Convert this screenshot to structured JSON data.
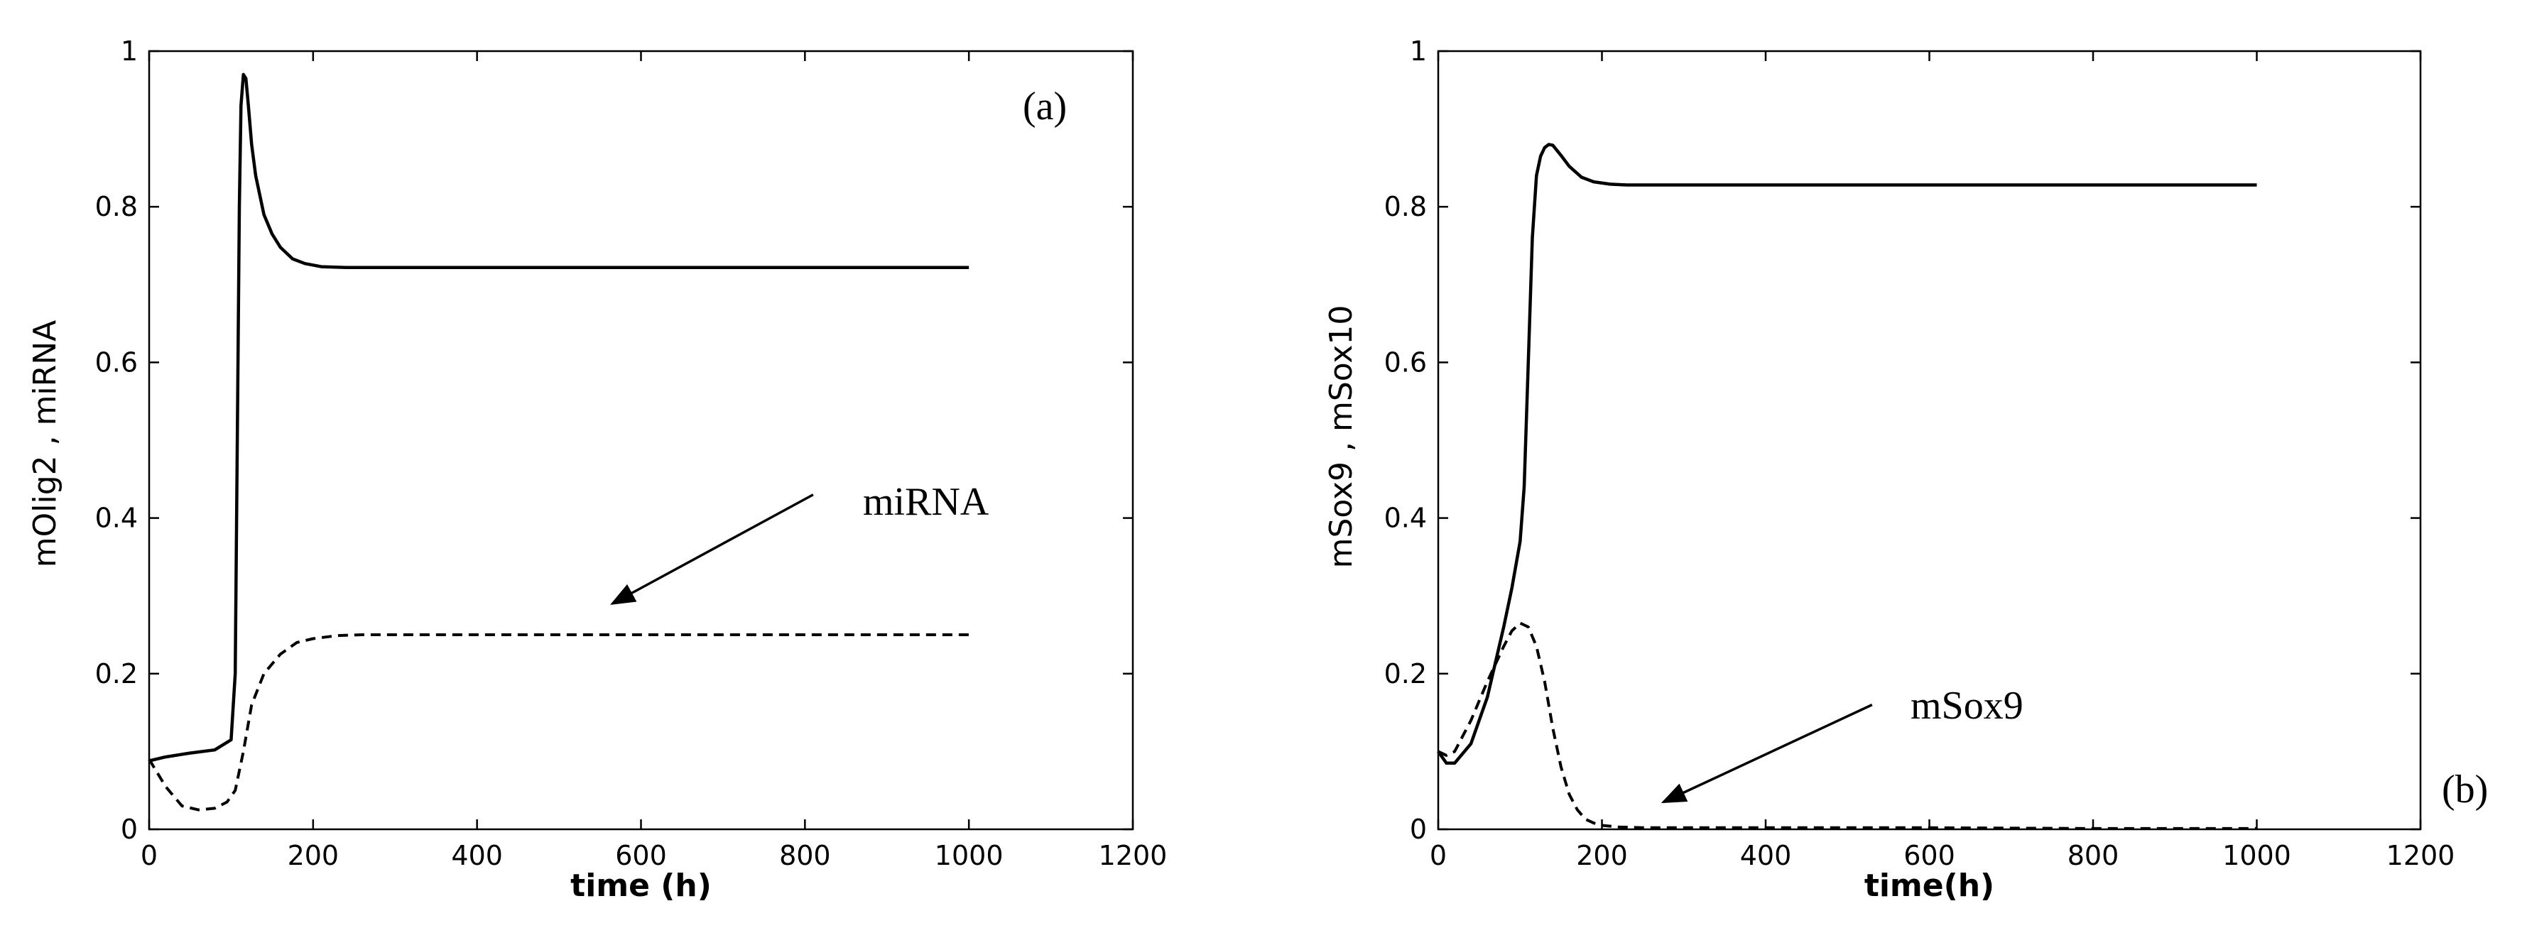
{
  "chart_data": [
    {
      "type": "line",
      "panel_label": "(a)",
      "xlabel": "time (h)",
      "ylabel": "mOlig2 , miRNA",
      "xlim": [
        0,
        1200
      ],
      "ylim": [
        0,
        1
      ],
      "xticks": [
        0,
        200,
        400,
        600,
        800,
        1000,
        1200
      ],
      "yticks": [
        0,
        0.2,
        0.4,
        0.6,
        0.8,
        1
      ],
      "xtick_labels": [
        "0",
        "200",
        "400",
        "600",
        "800",
        "1000",
        "1200"
      ],
      "ytick_labels": [
        "0",
        "0.2",
        "0.4",
        "0.6",
        "0.8",
        "1"
      ],
      "annotation": {
        "text": "miRNA",
        "arrow_from": [
          810,
          0.43
        ],
        "arrow_to": [
          565,
          0.29
        ]
      },
      "series": [
        {
          "name": "mOlig2",
          "style": "solid",
          "x": [
            0,
            20,
            50,
            80,
            100,
            105,
            108,
            110,
            112,
            115,
            118,
            121,
            125,
            130,
            140,
            150,
            160,
            175,
            190,
            210,
            240,
            300,
            500,
            800,
            1000
          ],
          "y": [
            0.088,
            0.093,
            0.098,
            0.102,
            0.115,
            0.2,
            0.55,
            0.8,
            0.93,
            0.97,
            0.965,
            0.93,
            0.88,
            0.84,
            0.79,
            0.765,
            0.748,
            0.733,
            0.727,
            0.723,
            0.722,
            0.722,
            0.722,
            0.722,
            0.722
          ]
        },
        {
          "name": "miRNA",
          "style": "dashed",
          "x": [
            0,
            20,
            40,
            60,
            80,
            95,
            105,
            115,
            125,
            140,
            160,
            180,
            200,
            230,
            260,
            300,
            400,
            600,
            800,
            1000
          ],
          "y": [
            0.09,
            0.055,
            0.03,
            0.025,
            0.027,
            0.035,
            0.05,
            0.1,
            0.16,
            0.2,
            0.225,
            0.24,
            0.245,
            0.249,
            0.25,
            0.25,
            0.25,
            0.25,
            0.25,
            0.25
          ]
        }
      ]
    },
    {
      "type": "line",
      "panel_label": "(b)",
      "xlabel": "time(h)",
      "ylabel": "mSox9 , mSox10",
      "xlim": [
        0,
        1200
      ],
      "ylim": [
        0,
        1
      ],
      "xticks": [
        0,
        200,
        400,
        600,
        800,
        1000,
        1200
      ],
      "yticks": [
        0,
        0.2,
        0.4,
        0.6,
        0.8,
        1
      ],
      "xtick_labels": [
        "0",
        "200",
        "400",
        "600",
        "800",
        "1000",
        "1200"
      ],
      "ytick_labels": [
        "0",
        "0.2",
        "0.4",
        "0.6",
        "0.8",
        "1"
      ],
      "annotation": {
        "text": "mSox9",
        "arrow_from": [
          530,
          0.16
        ],
        "arrow_to": [
          275,
          0.035
        ]
      },
      "series": [
        {
          "name": "mSox10",
          "style": "solid",
          "x": [
            0,
            10,
            20,
            40,
            60,
            80,
            90,
            100,
            105,
            110,
            115,
            120,
            125,
            130,
            135,
            140,
            150,
            160,
            175,
            190,
            210,
            230,
            300,
            500,
            800,
            1000
          ],
          "y": [
            0.1,
            0.085,
            0.085,
            0.11,
            0.17,
            0.26,
            0.31,
            0.37,
            0.44,
            0.6,
            0.76,
            0.84,
            0.865,
            0.876,
            0.88,
            0.879,
            0.866,
            0.852,
            0.838,
            0.832,
            0.829,
            0.828,
            0.828,
            0.828,
            0.828,
            0.828
          ]
        },
        {
          "name": "mSox9",
          "style": "dashed",
          "x": [
            0,
            10,
            20,
            40,
            60,
            80,
            90,
            100,
            110,
            120,
            130,
            140,
            150,
            160,
            170,
            180,
            190,
            200,
            220,
            250,
            300,
            400,
            600,
            800,
            1000
          ],
          "y": [
            0.1,
            0.095,
            0.1,
            0.14,
            0.19,
            0.235,
            0.255,
            0.265,
            0.26,
            0.235,
            0.19,
            0.13,
            0.08,
            0.045,
            0.025,
            0.013,
            0.008,
            0.005,
            0.003,
            0.002,
            0.002,
            0.002,
            0.002,
            0.001,
            0.001
          ]
        }
      ]
    }
  ]
}
